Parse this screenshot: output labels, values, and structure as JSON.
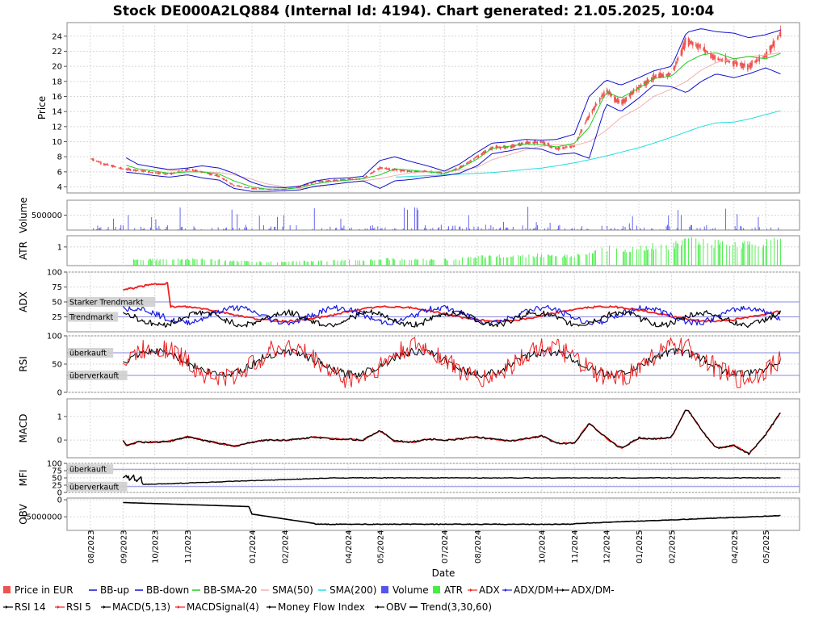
{
  "title": "Stock DE000A2LQ884 (Internal Id: 4194). Chart generated: 21.05.2025, 10:04",
  "xlabel": "Date",
  "colors": {
    "price": "#ef5350",
    "bb": "#1010d0",
    "bbmid": "#22cc22",
    "sma50": "#f2b0b0",
    "sma200": "#22dddd",
    "volume": "#5555ee",
    "atr": "#44ee44",
    "adx": "#ee2222",
    "dmplus": "#1a1ae0",
    "dmminus": "#000000",
    "rsi14": "#000000",
    "rsi5": "#ee2222",
    "macd": "#000000",
    "macdsig": "#ee2222",
    "mfi": "#000000",
    "obv": "#000000",
    "ref": "#8888dd",
    "grid": "#d8d8d8"
  },
  "date_ticks": [
    "08/2023",
    "09/2023",
    "10/2023",
    "11/2023",
    "01/2024",
    "02/2024",
    "04/2024",
    "05/2024",
    "07/2024",
    "08/2024",
    "10/2024",
    "11/2024",
    "12/2024",
    "01/2025",
    "02/2025",
    "04/2025",
    "05/2025"
  ],
  "panels": [
    {
      "id": "price",
      "ylabel": "Price",
      "ticks": [
        "4",
        "6",
        "8",
        "10",
        "12",
        "14",
        "16",
        "18",
        "20",
        "22",
        "24"
      ],
      "tick_values": [
        4,
        6,
        8,
        10,
        12,
        14,
        16,
        18,
        20,
        22,
        24
      ],
      "ylim": [
        3.2,
        25.8
      ]
    },
    {
      "id": "volume",
      "ylabel": "Volume",
      "ticks": [
        "500000"
      ],
      "tick_values": [
        500000
      ],
      "ylim": [
        0,
        1000000
      ]
    },
    {
      "id": "atr",
      "ylabel": "ATR",
      "ticks": [
        "1"
      ],
      "tick_values": [
        1
      ],
      "ylim": [
        0,
        1.6
      ]
    },
    {
      "id": "adx",
      "ylabel": "ADX",
      "ticks": [
        "25",
        "50",
        "75",
        "100"
      ],
      "tick_values": [
        25,
        50,
        75,
        100
      ],
      "ylim": [
        0,
        100
      ],
      "refs": [
        {
          "value": 50,
          "label": "Starker Trendmarkt"
        },
        {
          "value": 25,
          "label": "Trendmarkt"
        }
      ]
    },
    {
      "id": "rsi",
      "ylabel": "RSI",
      "ticks": [
        "0",
        "50",
        "100"
      ],
      "tick_values": [
        0,
        50,
        100
      ],
      "ylim": [
        0,
        100
      ],
      "refs": [
        {
          "value": 70,
          "label": "überkauft"
        },
        {
          "value": 30,
          "label": "überverkauft"
        }
      ]
    },
    {
      "id": "macd",
      "ylabel": "MACD",
      "ticks": [
        "0",
        "1"
      ],
      "tick_values": [
        0,
        1
      ],
      "ylim": [
        -0.75,
        1.75
      ]
    },
    {
      "id": "mfi",
      "ylabel": "MFI",
      "ticks": [
        "0",
        "25",
        "50",
        "75",
        "100"
      ],
      "tick_values": [
        0,
        25,
        50,
        75,
        100
      ],
      "ylim": [
        0,
        100
      ],
      "refs": [
        {
          "value": 80,
          "label": "überkauft"
        },
        {
          "value": 20,
          "label": "überverkauft"
        }
      ]
    },
    {
      "id": "obv",
      "ylabel": "OBV",
      "ticks": [
        "-5000000",
        "0"
      ],
      "tick_values": [
        -5000000,
        0
      ],
      "ylim": [
        -9000000,
        500000
      ]
    }
  ],
  "legend": [
    {
      "label": "Price in EUR",
      "kind": "box",
      "color": "#ef5350"
    },
    {
      "label": "BB-up",
      "kind": "line",
      "color": "#1010d0"
    },
    {
      "label": "BB-down",
      "kind": "line",
      "color": "#1010d0"
    },
    {
      "label": "BB-SMA-20",
      "kind": "line",
      "color": "#22cc22"
    },
    {
      "label": "SMA(50)",
      "kind": "line",
      "color": "#f2b0b0"
    },
    {
      "label": "SMA(200)",
      "kind": "line",
      "color": "#22dddd"
    },
    {
      "label": "Volume",
      "kind": "box",
      "color": "#5555ee"
    },
    {
      "label": "ATR",
      "kind": "box",
      "color": "#44ee44"
    },
    {
      "label": "ADX",
      "kind": "marker",
      "color": "#ee2222"
    },
    {
      "label": "ADX/DM+",
      "kind": "marker",
      "color": "#1a1ae0"
    },
    {
      "label": "ADX/DM-",
      "kind": "marker",
      "color": "#000000"
    },
    {
      "label": "RSI 14",
      "kind": "marker",
      "color": "#000000"
    },
    {
      "label": "RSI 5",
      "kind": "marker",
      "color": "#ee2222"
    },
    {
      "label": "MACD(5,13)",
      "kind": "marker",
      "color": "#000000"
    },
    {
      "label": "MACDSignal(4)",
      "kind": "marker",
      "color": "#ee2222"
    },
    {
      "label": "Money Flow Index",
      "kind": "marker",
      "color": "#000000"
    },
    {
      "label": "OBV",
      "kind": "marker",
      "color": "#000000"
    },
    {
      "label": "Trend(3,30,60)",
      "kind": "line",
      "color": "#000000"
    }
  ],
  "chart_data": {
    "type": "line",
    "title": "Stock DE000A2LQ884 (Internal Id: 4194). Chart generated: 21.05.2025, 10:04",
    "xlabel": "Date",
    "x": [
      "2023-08-01",
      "2023-08-15",
      "2023-09-01",
      "2023-09-15",
      "2023-10-01",
      "2023-10-15",
      "2023-11-01",
      "2023-11-15",
      "2023-12-01",
      "2023-12-15",
      "2024-01-01",
      "2024-01-15",
      "2024-02-01",
      "2024-02-15",
      "2024-03-01",
      "2024-03-15",
      "2024-04-01",
      "2024-04-15",
      "2024-05-01",
      "2024-05-15",
      "2024-06-01",
      "2024-06-15",
      "2024-07-01",
      "2024-07-15",
      "2024-08-01",
      "2024-08-15",
      "2024-09-01",
      "2024-09-15",
      "2024-10-01",
      "2024-10-15",
      "2024-11-01",
      "2024-11-15",
      "2024-12-01",
      "2024-12-15",
      "2025-01-01",
      "2025-01-15",
      "2025-02-01",
      "2025-02-15",
      "2025-03-01",
      "2025-03-15",
      "2025-04-01",
      "2025-04-15",
      "2025-05-01",
      "2025-05-15"
    ],
    "series": [
      {
        "name": "Price in EUR",
        "panel": "price",
        "values": [
          7.8,
          7.0,
          6.4,
          6.2,
          5.9,
          5.7,
          6.3,
          6.0,
          5.4,
          4.2,
          3.8,
          3.7,
          3.7,
          4.0,
          4.7,
          4.8,
          5.0,
          5.1,
          6.5,
          6.3,
          6.0,
          6.1,
          5.8,
          6.5,
          8.0,
          9.2,
          9.3,
          9.8,
          10.0,
          9.0,
          9.5,
          13.5,
          16.8,
          15.0,
          17.3,
          18.5,
          19.0,
          23.5,
          22.5,
          21.0,
          20.5,
          20.0,
          21.5,
          24.3
        ]
      },
      {
        "name": "BB-up",
        "panel": "price",
        "values": [
          null,
          null,
          8.1,
          7.0,
          6.6,
          6.3,
          6.5,
          6.8,
          6.5,
          5.8,
          4.6,
          4.0,
          3.9,
          4.1,
          4.8,
          5.1,
          5.2,
          5.4,
          7.5,
          8.0,
          7.3,
          6.8,
          6.1,
          7.0,
          8.6,
          9.8,
          10.0,
          10.3,
          10.2,
          10.3,
          11.0,
          16.0,
          18.2,
          17.5,
          18.5,
          19.4,
          20.0,
          24.5,
          25.0,
          24.6,
          24.4,
          23.8,
          24.2,
          24.8
        ]
      },
      {
        "name": "BB-down",
        "panel": "price",
        "values": [
          null,
          null,
          6.0,
          5.8,
          5.5,
          5.3,
          5.6,
          5.2,
          4.9,
          3.8,
          3.4,
          3.4,
          3.5,
          3.6,
          4.1,
          4.3,
          4.6,
          4.8,
          3.8,
          4.8,
          5.0,
          5.3,
          5.5,
          5.8,
          6.8,
          8.4,
          8.8,
          9.2,
          9.0,
          8.3,
          8.5,
          7.8,
          15.0,
          14.0,
          15.8,
          17.5,
          17.3,
          16.5,
          18.0,
          19.0,
          18.5,
          19.0,
          19.8,
          19.0
        ]
      },
      {
        "name": "BB-SMA-20",
        "panel": "price",
        "values": [
          null,
          null,
          7.0,
          6.4,
          6.1,
          5.8,
          6.0,
          6.0,
          5.7,
          4.8,
          4.0,
          3.7,
          3.7,
          3.9,
          4.4,
          4.7,
          4.9,
          5.1,
          5.6,
          6.4,
          6.2,
          6.0,
          5.8,
          6.4,
          7.7,
          9.1,
          9.4,
          9.7,
          9.6,
          9.3,
          9.8,
          11.9,
          16.6,
          15.8,
          17.1,
          18.4,
          18.7,
          20.5,
          21.5,
          21.8,
          21.0,
          21.3,
          21.0,
          21.7
        ]
      },
      {
        "name": "SMA(50)",
        "panel": "price",
        "values": [
          null,
          null,
          null,
          null,
          6.6,
          6.2,
          6.0,
          6.0,
          5.9,
          5.6,
          5.0,
          4.4,
          4.0,
          3.8,
          4.0,
          4.3,
          4.6,
          4.8,
          5.1,
          5.5,
          5.9,
          6.0,
          6.1,
          6.2,
          6.6,
          7.6,
          8.3,
          8.9,
          9.4,
          9.6,
          9.5,
          10.0,
          11.5,
          13.2,
          14.5,
          16.0,
          17.0,
          18.0,
          19.5,
          20.5,
          21.0,
          21.3,
          21.5,
          21.8
        ]
      },
      {
        "name": "SMA(200)",
        "panel": "price",
        "values": [
          null,
          null,
          null,
          null,
          null,
          null,
          null,
          null,
          null,
          null,
          null,
          null,
          null,
          null,
          null,
          null,
          null,
          null,
          null,
          5.3,
          5.4,
          5.5,
          5.6,
          5.7,
          5.8,
          5.9,
          6.1,
          6.3,
          6.5,
          6.8,
          7.2,
          7.6,
          8.1,
          8.6,
          9.2,
          9.8,
          10.6,
          11.3,
          12.0,
          12.5,
          12.6,
          13.0,
          13.6,
          14.1
        ]
      }
    ],
    "ylim_price": [
      3.2,
      25.8
    ],
    "adx_ref_levels": [
      50,
      25
    ],
    "rsi_ref_levels": [
      70,
      30
    ],
    "mfi_ref_levels": [
      80,
      20
    ],
    "grid": true,
    "legend_position": "bottom"
  }
}
